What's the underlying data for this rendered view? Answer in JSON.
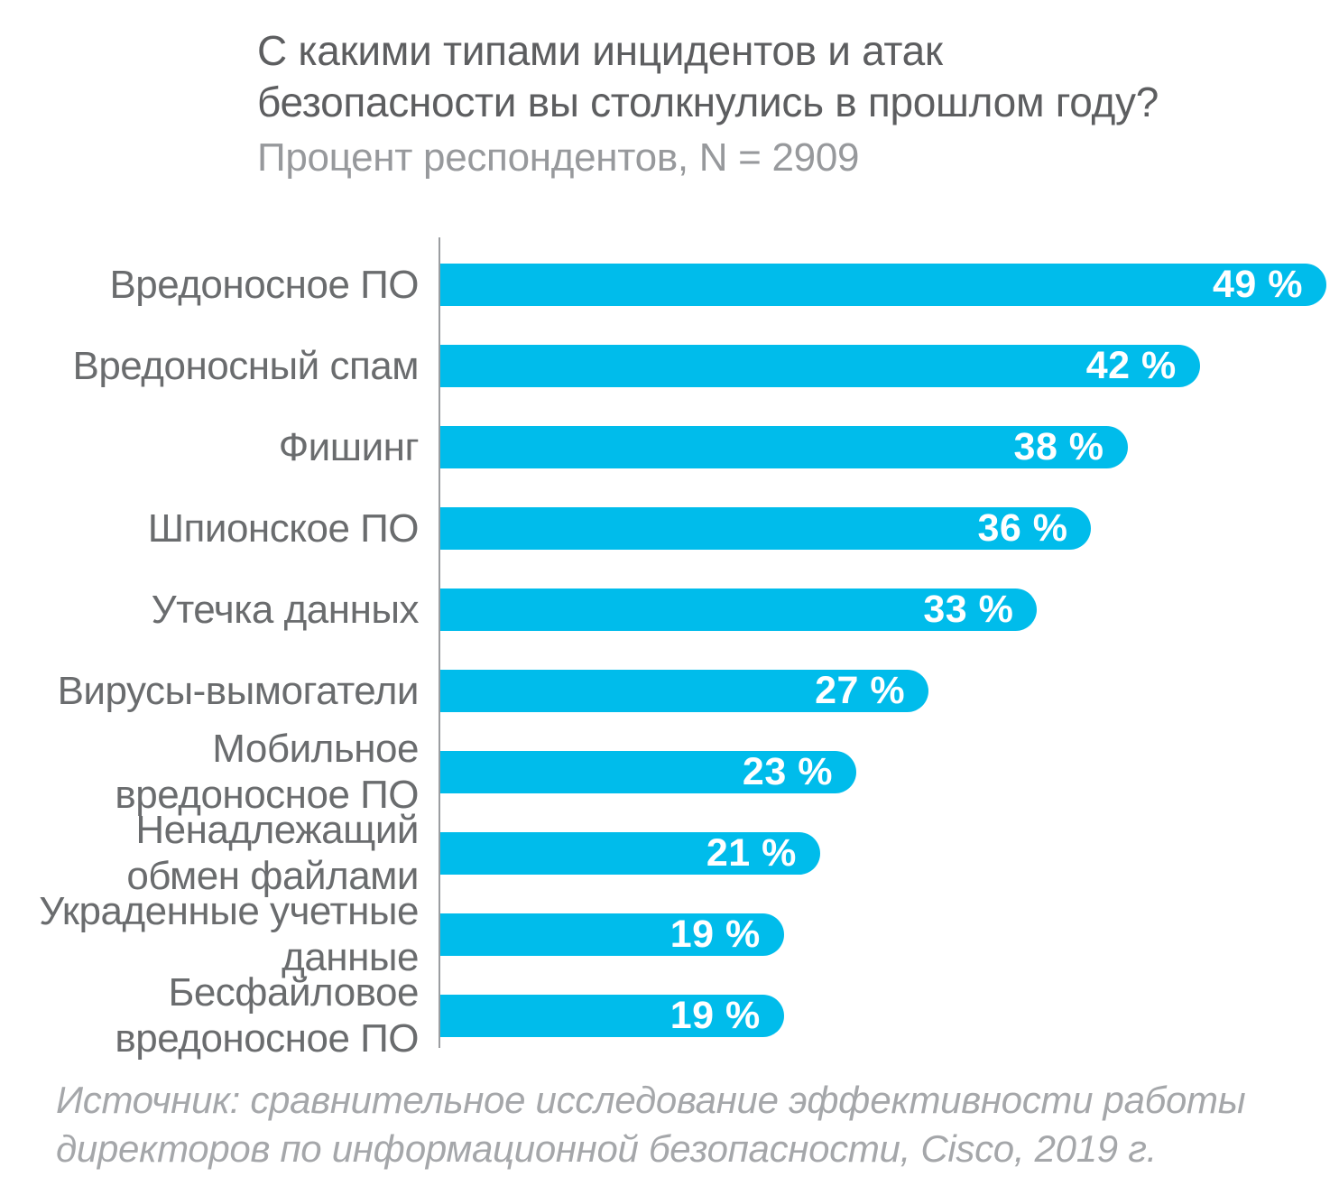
{
  "colors": {
    "background": "#ffffff",
    "bar": "#00bceb",
    "title_text": "#5d5e60",
    "subtitle_text": "#97999c",
    "label_text": "#6a6c6e",
    "value_text": "#ffffff",
    "source_text": "#a5a7aa",
    "axis_line": "#9b9da0"
  },
  "chart_data": {
    "type": "bar",
    "orientation": "horizontal",
    "title": "С какими типами инцидентов и атак\nбезопасности вы столкнулись в прошлом году?",
    "subtitle": "Процент респондентов, N = 2909",
    "categories": [
      "Вредоносное ПО",
      "Вредоносный спам",
      "Фишинг",
      "Шпионское ПО",
      "Утечка данных",
      "Вирусы-вымогатели",
      "Мобильное вредоносное ПО",
      "Ненадлежащий обмен файлами",
      "Украденные учетные данные",
      "Бесфайловое вредоносное ПО"
    ],
    "label_display": [
      "Вредоносное ПО",
      "Вредоносный спам",
      "Фишинг",
      "Шпионское ПО",
      "Утечка данных",
      "Вирусы-вымогатели",
      "Мобильное\nвредоносное ПО",
      "Ненадлежащий\nобмен файлами",
      "Украденные учетные\nданные",
      "Бесфайловое\nвредоносное ПО"
    ],
    "values": [
      49,
      42,
      38,
      36,
      33,
      27,
      23,
      21,
      19,
      19
    ],
    "value_labels": [
      "49 %",
      "42 %",
      "38 %",
      "36 %",
      "33 %",
      "27 %",
      "23 %",
      "21 %",
      "19 %",
      "19 %"
    ],
    "xlim": [
      0,
      49
    ],
    "unit": "%",
    "grid": false,
    "legend": false,
    "source": "Источник: сравнительное исследование эффективности работы\nдиректоров по информационной безопасности, Cisco, 2019 г."
  }
}
